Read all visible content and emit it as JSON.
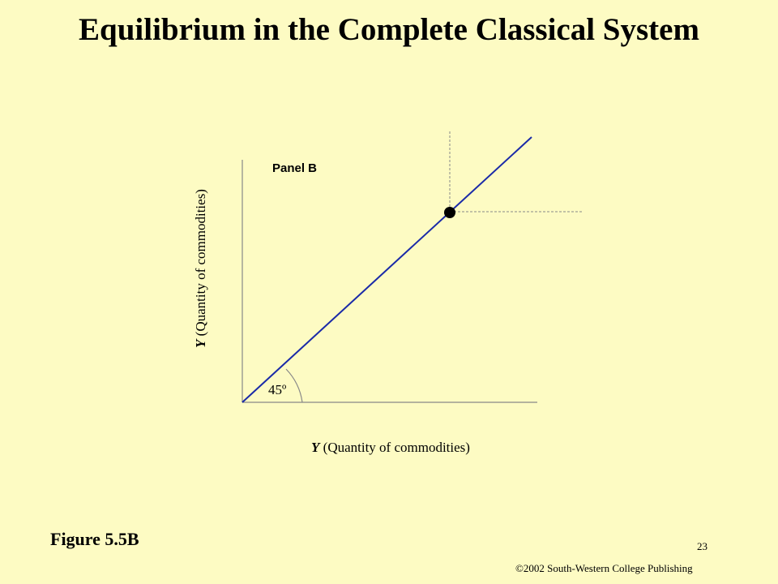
{
  "slide": {
    "title": "Equilibrium in the Complete Classical System",
    "figure_label": "Figure 5.5B",
    "slide_number": "23",
    "copyright": "©2002 South-Western College Publishing"
  },
  "diagram": {
    "panel_label": "Panel B",
    "x_axis": {
      "variable": "Y",
      "description": " (Quantity of commodities)"
    },
    "y_axis": {
      "variable": "Y",
      "description": " (Quantity of commodities)"
    },
    "angle_label": "45º",
    "colors": {
      "background": "#fdfbc3",
      "line": "#1a2aa8",
      "axis": "#888888",
      "guide": "#888888",
      "point": "#000000"
    }
  }
}
